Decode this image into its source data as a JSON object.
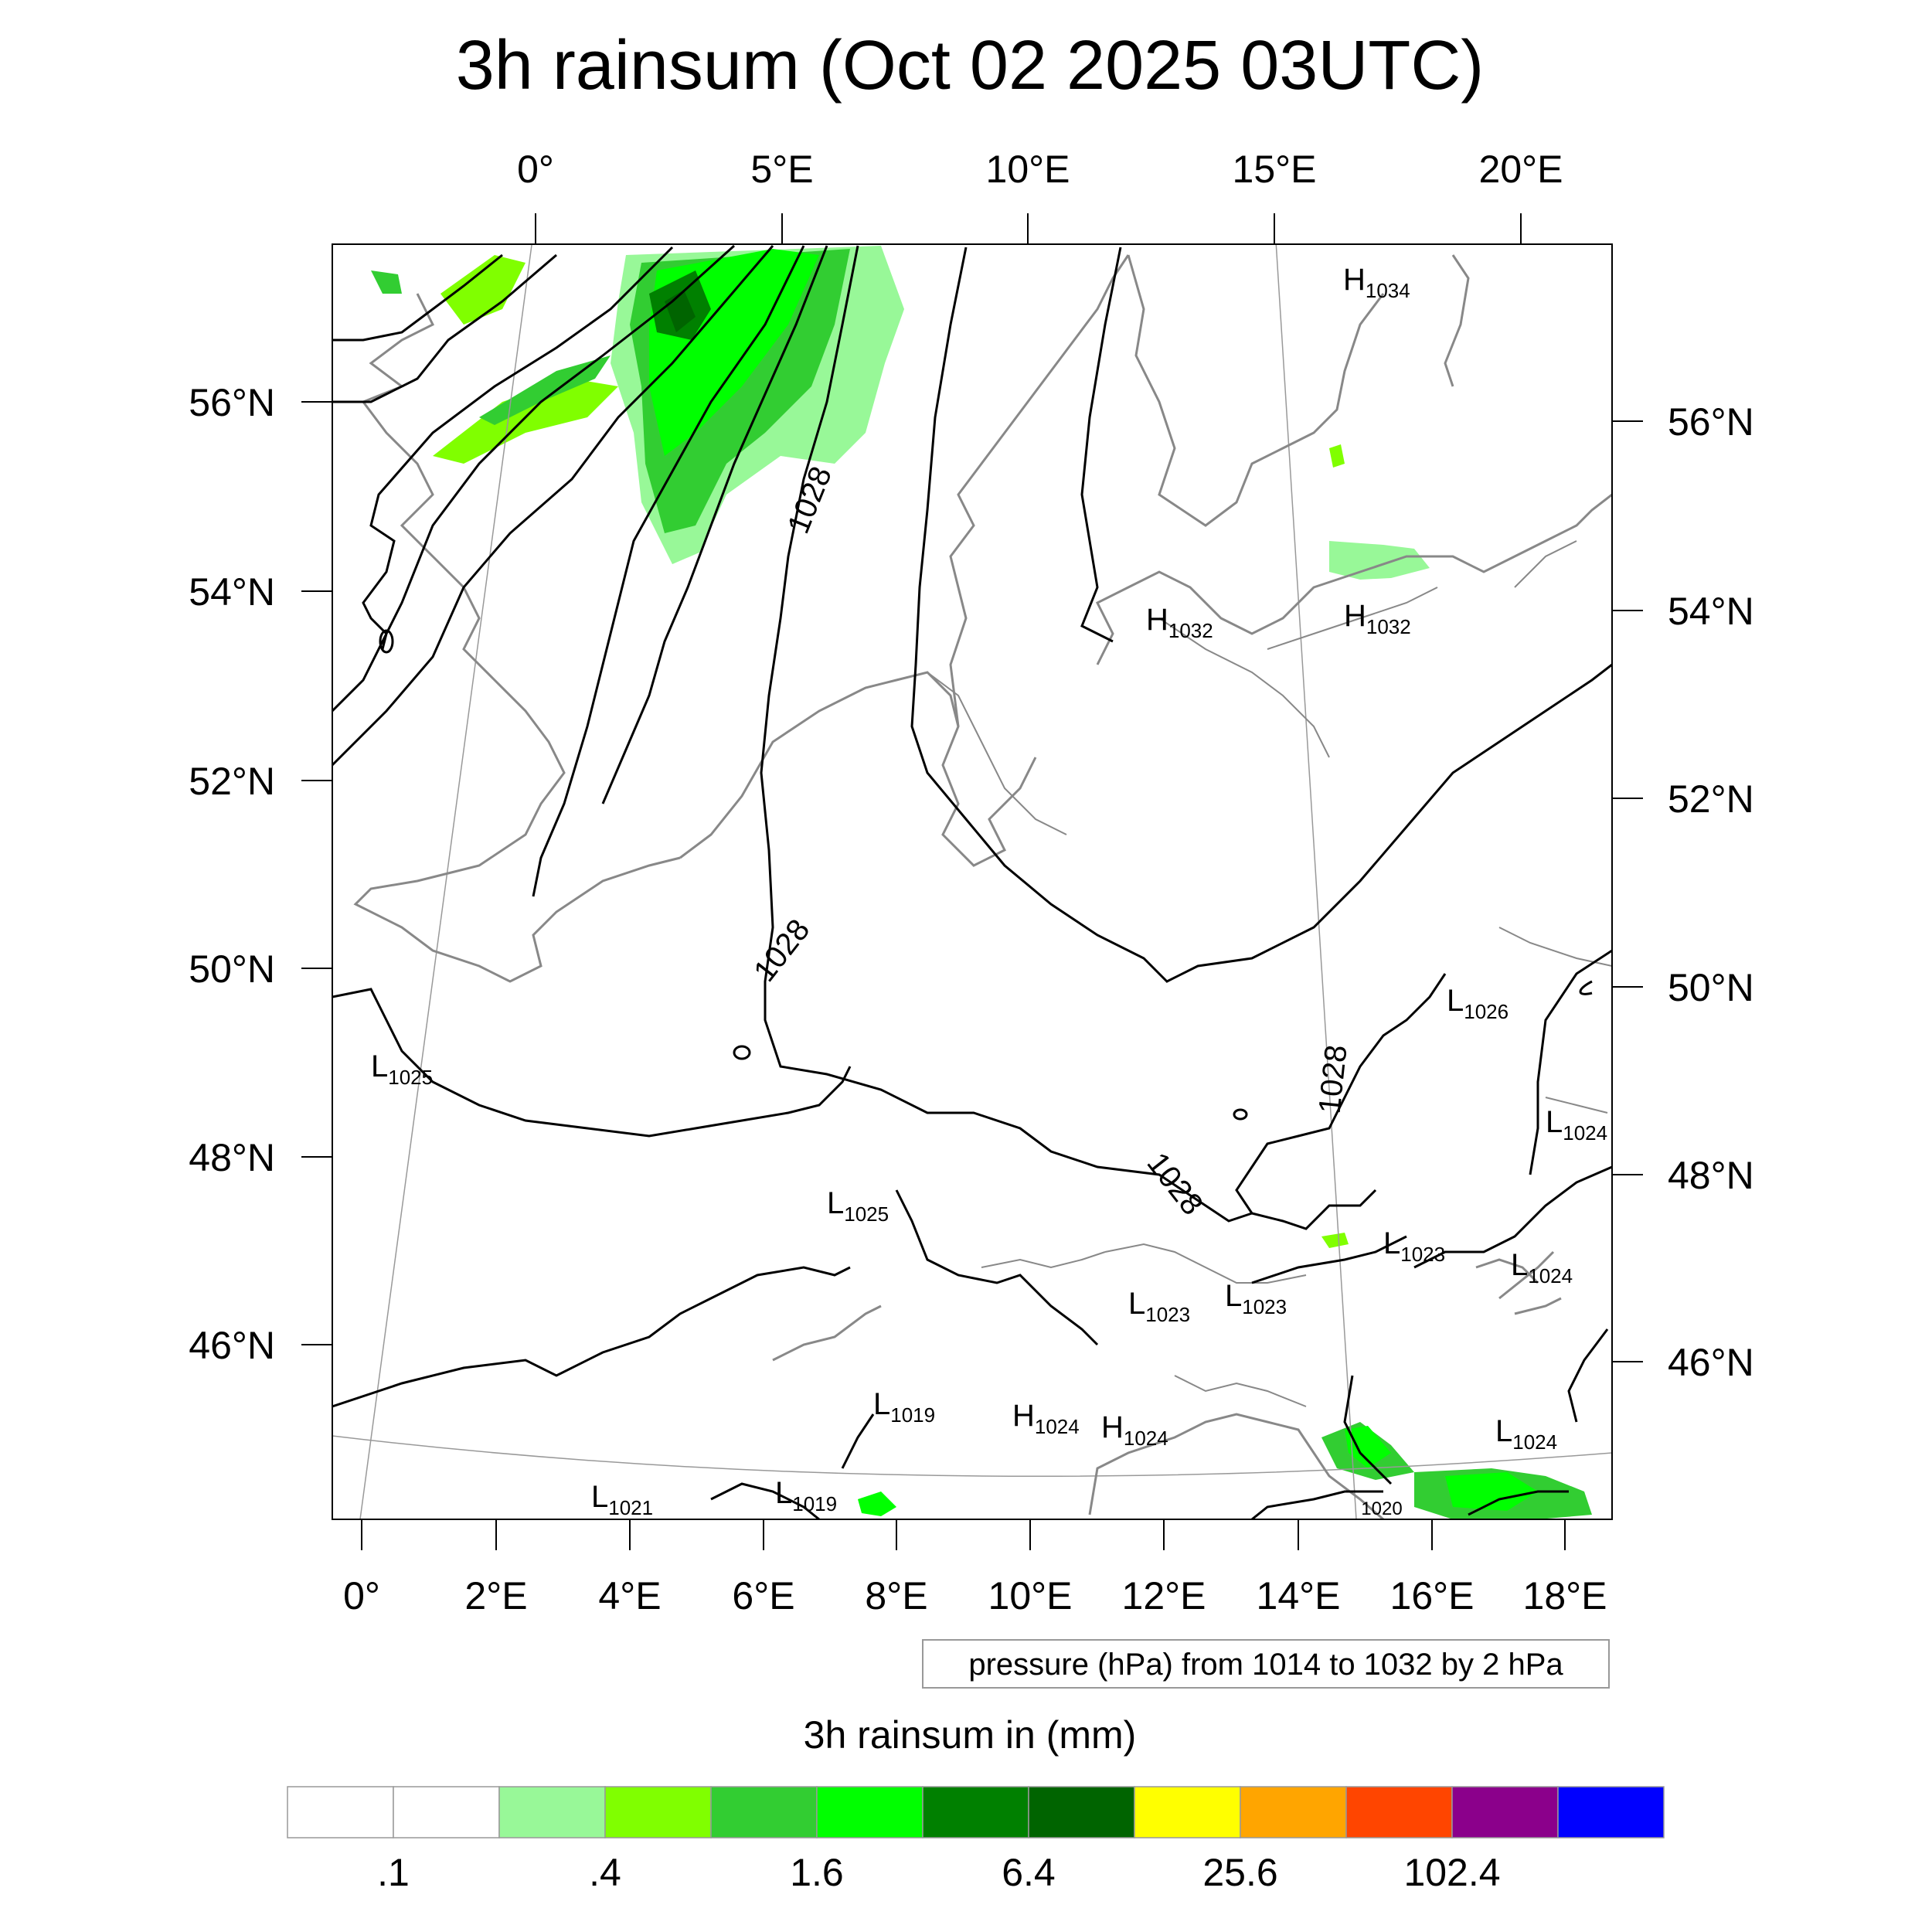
{
  "title": "3h rainsum (Oct 02 2025 03UTC)",
  "top_lon_labels": [
    "0°",
    "5°E",
    "10°E",
    "15°E",
    "20°E"
  ],
  "bottom_lon_labels": [
    "0°",
    "2°E",
    "4°E",
    "6°E",
    "8°E",
    "10°E",
    "12°E",
    "14°E",
    "16°E",
    "18°E"
  ],
  "left_lat_labels": [
    "56°N",
    "54°N",
    "52°N",
    "50°N",
    "48°N",
    "46°N"
  ],
  "right_lat_labels": [
    "56°N",
    "54°N",
    "52°N",
    "50°N",
    "48°N",
    "46°N"
  ],
  "isobar_labels": [
    "1028",
    "1028",
    "1028",
    "1028"
  ],
  "pressure_centers": [
    {
      "kind": "H",
      "value": "1034"
    },
    {
      "kind": "H",
      "value": "1032"
    },
    {
      "kind": "H",
      "value": "1032"
    },
    {
      "kind": "L",
      "value": "1025"
    },
    {
      "kind": "L",
      "value": "1026"
    },
    {
      "kind": "L",
      "value": "1024"
    },
    {
      "kind": "L",
      "value": "1025"
    },
    {
      "kind": "L",
      "value": "1023"
    },
    {
      "kind": "L",
      "value": "1024"
    },
    {
      "kind": "L",
      "value": "1023"
    },
    {
      "kind": "L",
      "value": "1023"
    },
    {
      "kind": "L",
      "value": "1019"
    },
    {
      "kind": "H",
      "value": "1024"
    },
    {
      "kind": "H",
      "value": "1024"
    },
    {
      "kind": "L",
      "value": "1024"
    },
    {
      "kind": "L",
      "value": "1021"
    },
    {
      "kind": "L",
      "value": "1019"
    }
  ],
  "small_isobar_label": "1020",
  "contour_info": "pressure (hPa) from 1014 to 1032 by 2 hPa",
  "colorbar": {
    "title": "3h rainsum in (mm)",
    "colors": [
      "#ffffff",
      "#ffffff",
      "#98f898",
      "#80ff00",
      "#32cd32",
      "#00ff00",
      "#008000",
      "#006400",
      "#ffff00",
      "#ffa500",
      "#ff4500",
      "#8b008b",
      "#0000ff"
    ],
    "labels": [
      ".1",
      ".4",
      "1.6",
      "6.4",
      "25.6",
      "102.4"
    ]
  }
}
